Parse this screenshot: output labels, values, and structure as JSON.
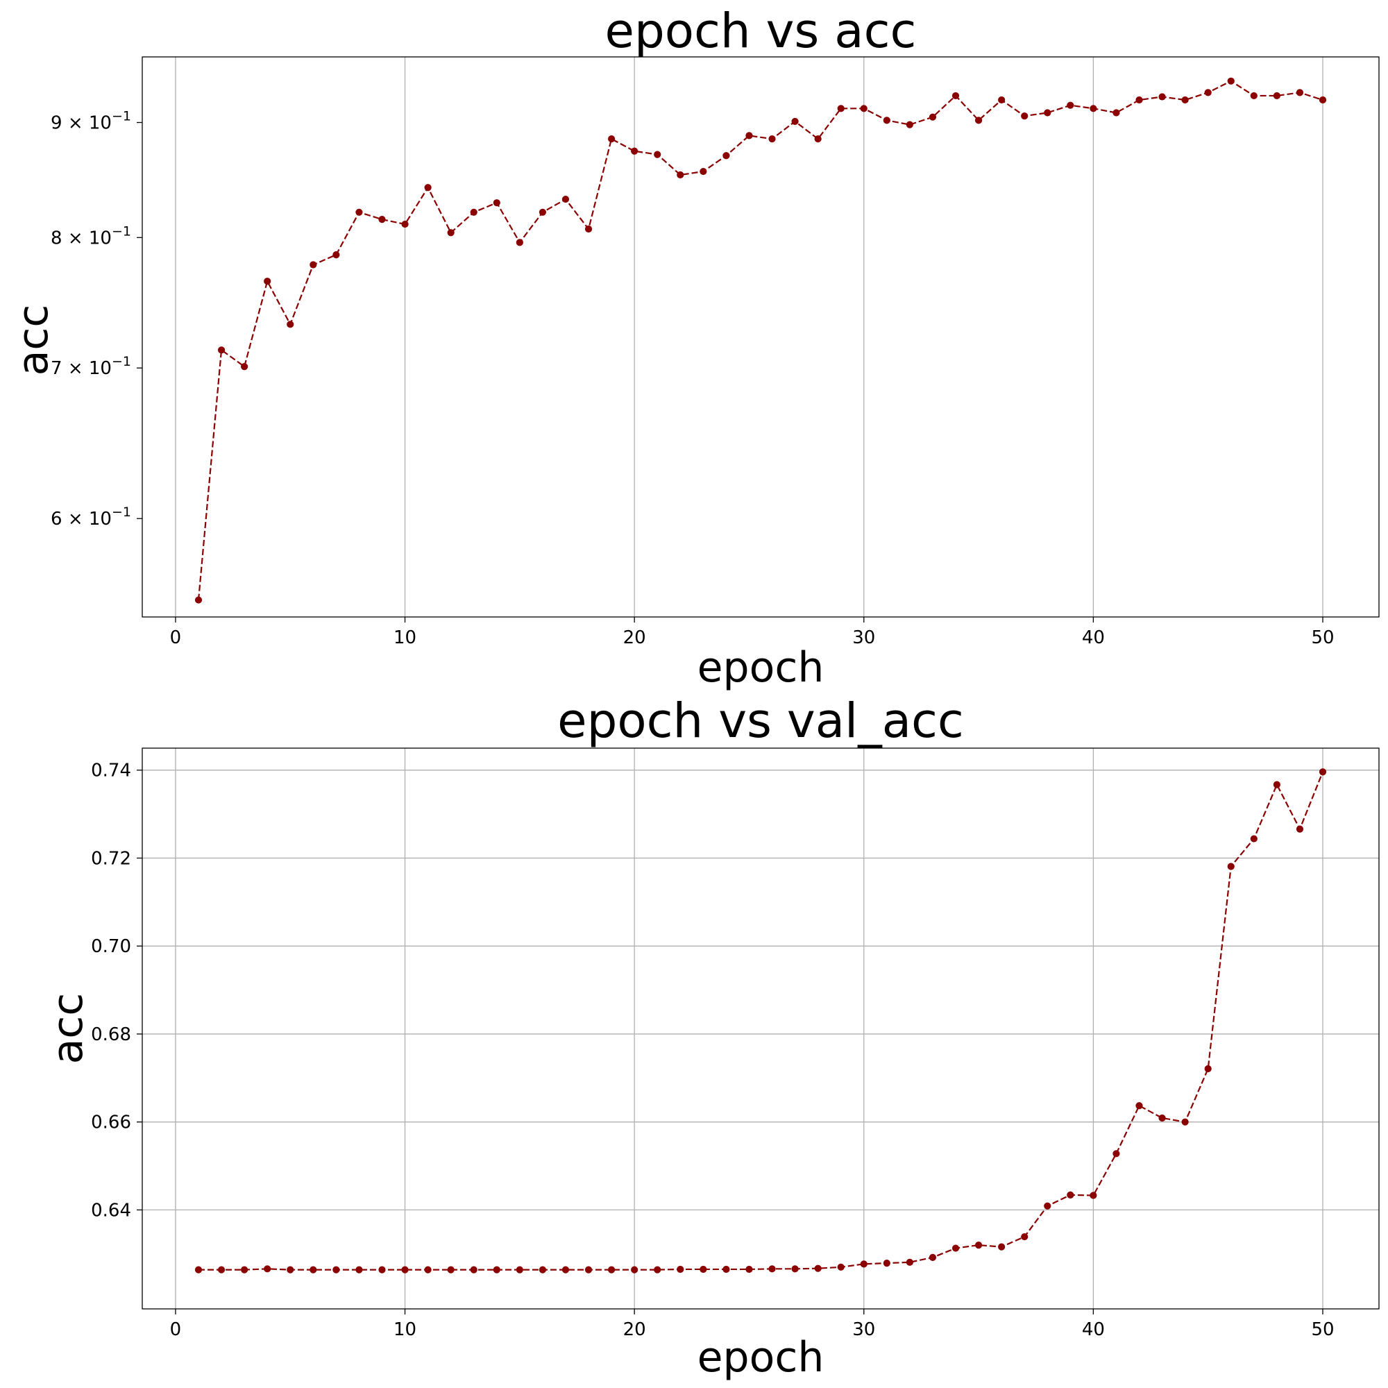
{
  "chart_data": [
    {
      "type": "line",
      "title": "epoch vs acc",
      "xlabel": "epoch",
      "ylabel": "acc",
      "yscale": "log",
      "grid": "x",
      "color": "#8b0000",
      "linestyle": "dashed",
      "marker": "circle",
      "xlim": [
        -1.45,
        52.45
      ],
      "ylim": [
        0.5425,
        0.9625
      ],
      "xticks": [
        0,
        10,
        20,
        30,
        40,
        50
      ],
      "xtick_labels": [
        "0",
        "10",
        "20",
        "30",
        "40",
        "50"
      ],
      "yticks": [
        {
          "value": 0.9,
          "mantissa": "9",
          "exponent": "−1"
        },
        {
          "value": 0.8,
          "mantissa": "8",
          "exponent": "−1"
        },
        {
          "value": 0.7,
          "mantissa": "7",
          "exponent": "−1"
        },
        {
          "value": 0.6,
          "mantissa": "6",
          "exponent": "−1"
        }
      ],
      "x": [
        1,
        2,
        3,
        4,
        5,
        6,
        7,
        8,
        9,
        10,
        11,
        12,
        13,
        14,
        15,
        16,
        17,
        18,
        19,
        20,
        21,
        22,
        23,
        24,
        25,
        26,
        27,
        28,
        29,
        30,
        31,
        32,
        33,
        34,
        35,
        36,
        37,
        38,
        39,
        40,
        41,
        42,
        43,
        44,
        45,
        46,
        47,
        48,
        49,
        50
      ],
      "values": [
        0.552,
        0.713,
        0.701,
        0.765,
        0.732,
        0.778,
        0.786,
        0.821,
        0.815,
        0.811,
        0.842,
        0.804,
        0.821,
        0.829,
        0.796,
        0.821,
        0.832,
        0.807,
        0.885,
        0.874,
        0.871,
        0.853,
        0.856,
        0.87,
        0.888,
        0.885,
        0.901,
        0.885,
        0.913,
        0.913,
        0.902,
        0.898,
        0.905,
        0.925,
        0.902,
        0.921,
        0.906,
        0.909,
        0.916,
        0.913,
        0.909,
        0.921,
        0.924,
        0.921,
        0.928,
        0.939,
        0.925,
        0.925,
        0.928,
        0.921
      ]
    },
    {
      "type": "line",
      "title": "epoch vs val_acc",
      "xlabel": "epoch",
      "ylabel": "acc",
      "yscale": "linear",
      "grid": "both",
      "color": "#8b0000",
      "linestyle": "dashed",
      "marker": "circle",
      "xlim": [
        -1.45,
        52.45
      ],
      "ylim": [
        0.6175,
        0.745
      ],
      "xticks": [
        0,
        10,
        20,
        30,
        40,
        50
      ],
      "xtick_labels": [
        "0",
        "10",
        "20",
        "30",
        "40",
        "50"
      ],
      "yticks": [
        0.64,
        0.66,
        0.68,
        0.7,
        0.72,
        0.74
      ],
      "ytick_labels": [
        "0.64",
        "0.66",
        "0.68",
        "0.70",
        "0.72",
        "0.74"
      ],
      "x": [
        1,
        2,
        3,
        4,
        5,
        6,
        7,
        8,
        9,
        10,
        11,
        12,
        13,
        14,
        15,
        16,
        17,
        18,
        19,
        20,
        21,
        22,
        23,
        24,
        25,
        26,
        27,
        28,
        29,
        30,
        31,
        32,
        33,
        34,
        35,
        36,
        37,
        38,
        39,
        40,
        41,
        42,
        43,
        44,
        45,
        46,
        47,
        48,
        49,
        50
      ],
      "values": [
        0.6264,
        0.6264,
        0.6264,
        0.6266,
        0.6264,
        0.6264,
        0.6264,
        0.6264,
        0.6264,
        0.6264,
        0.6264,
        0.6264,
        0.6264,
        0.6264,
        0.6264,
        0.6264,
        0.6264,
        0.6264,
        0.6264,
        0.6264,
        0.6264,
        0.6265,
        0.6265,
        0.6265,
        0.6265,
        0.6266,
        0.6266,
        0.6267,
        0.627,
        0.6277,
        0.6279,
        0.6281,
        0.6292,
        0.6313,
        0.632,
        0.6316,
        0.6339,
        0.6409,
        0.6434,
        0.6433,
        0.6528,
        0.6637,
        0.6609,
        0.66,
        0.6721,
        0.7181,
        0.7244,
        0.7367,
        0.7266,
        0.7396
      ]
    }
  ]
}
